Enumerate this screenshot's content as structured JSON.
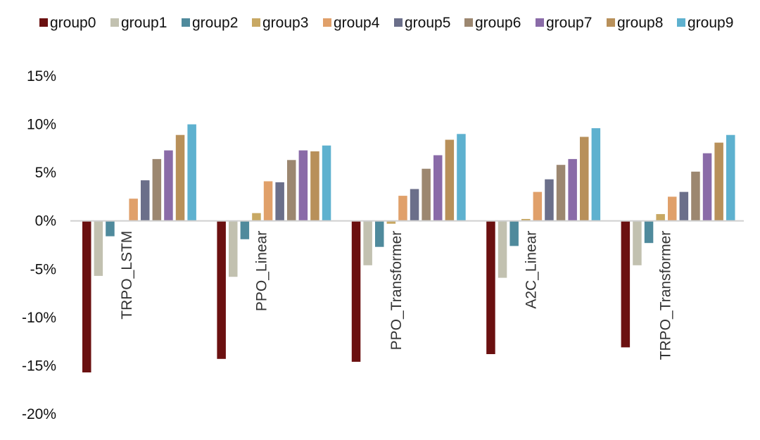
{
  "chart_data": {
    "type": "bar",
    "categories": [
      "TRPO_LSTM",
      "PPO_Linear",
      "PPO_Transformer",
      "A2C_Linear",
      "TRPO_Transformer"
    ],
    "ylim": [
      -20,
      15
    ],
    "yticks": [
      -20,
      -15,
      -10,
      -5,
      0,
      5,
      10,
      15
    ],
    "ytick_labels": [
      "-20%",
      "-15%",
      "-10%",
      "-5%",
      "0%",
      "5%",
      "10%",
      "15%"
    ],
    "legend_position": "top",
    "grid": false,
    "series": [
      {
        "name": "group0",
        "color": "#6b1010",
        "values": [
          -15.7,
          -14.3,
          -14.6,
          -13.8,
          -13.1
        ]
      },
      {
        "name": "group1",
        "color": "#c2c1b0",
        "values": [
          -5.7,
          -5.8,
          -4.6,
          -5.9,
          -4.6
        ]
      },
      {
        "name": "group2",
        "color": "#4f8a9c",
        "values": [
          -1.6,
          -1.9,
          -2.7,
          -2.6,
          -2.3
        ]
      },
      {
        "name": "group3",
        "color": "#c8a863",
        "values": [
          0.0,
          0.8,
          -0.3,
          0.2,
          0.7
        ]
      },
      {
        "name": "group4",
        "color": "#e0a06a",
        "values": [
          2.3,
          4.1,
          2.6,
          3.0,
          2.5
        ]
      },
      {
        "name": "group5",
        "color": "#6b6f8a",
        "values": [
          4.2,
          4.0,
          3.3,
          4.3,
          3.0
        ]
      },
      {
        "name": "group6",
        "color": "#9c8770",
        "values": [
          6.4,
          6.3,
          5.4,
          5.8,
          5.1
        ]
      },
      {
        "name": "group7",
        "color": "#8a6ba8",
        "values": [
          7.3,
          7.3,
          6.8,
          6.4,
          7.0
        ]
      },
      {
        "name": "group8",
        "color": "#b8905a",
        "values": [
          8.9,
          7.2,
          8.4,
          8.7,
          8.1
        ]
      },
      {
        "name": "group9",
        "color": "#5eb1cf",
        "values": [
          10.0,
          7.8,
          9.0,
          9.6,
          8.9
        ]
      }
    ]
  }
}
